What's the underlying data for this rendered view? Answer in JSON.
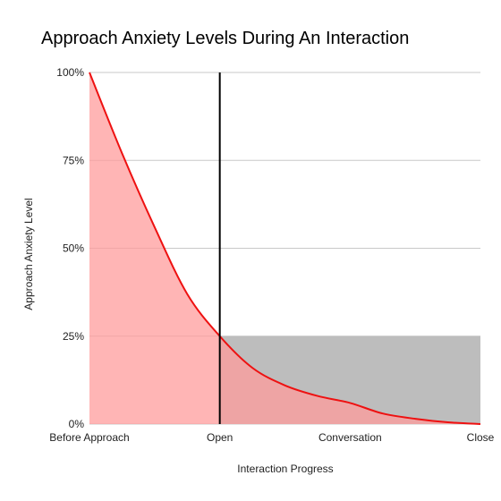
{
  "chart_data": {
    "type": "area",
    "title": "Approach Anxiety Levels During An Interaction",
    "xlabel": "Interaction Progress",
    "ylabel": "Approach Anxiety Level",
    "categories": [
      "Before Approach",
      "Open",
      "Conversation",
      "Close"
    ],
    "ytick_labels": [
      "0%",
      "25%",
      "50%",
      "75%",
      "100%"
    ],
    "ylim": [
      0,
      100
    ],
    "xlim": [
      0,
      3
    ],
    "grid": true,
    "series": [
      {
        "values": [
          {
            "x": 0.0,
            "y": 100
          },
          {
            "x": 0.25,
            "y": 77
          },
          {
            "x": 0.5,
            "y": 56
          },
          {
            "x": 0.75,
            "y": 37
          },
          {
            "x": 1.0,
            "y": 25
          },
          {
            "x": 1.25,
            "y": 16
          },
          {
            "x": 1.5,
            "y": 11
          },
          {
            "x": 1.75,
            "y": 8
          },
          {
            "x": 2.0,
            "y": 6
          },
          {
            "x": 2.25,
            "y": 3
          },
          {
            "x": 2.5,
            "y": 1.5
          },
          {
            "x": 2.75,
            "y": 0.5
          },
          {
            "x": 3.0,
            "y": 0
          }
        ]
      }
    ],
    "reference_band": {
      "x_from": 1,
      "x_to": 3,
      "y_from": 0,
      "y_to": 25
    },
    "reference_line_x": 1,
    "colors": {
      "line": "#ee1111",
      "fill": "#ff9c9c",
      "band": "#bdbdbd",
      "vline": "#000000",
      "grid": "#c8c8c8"
    }
  }
}
